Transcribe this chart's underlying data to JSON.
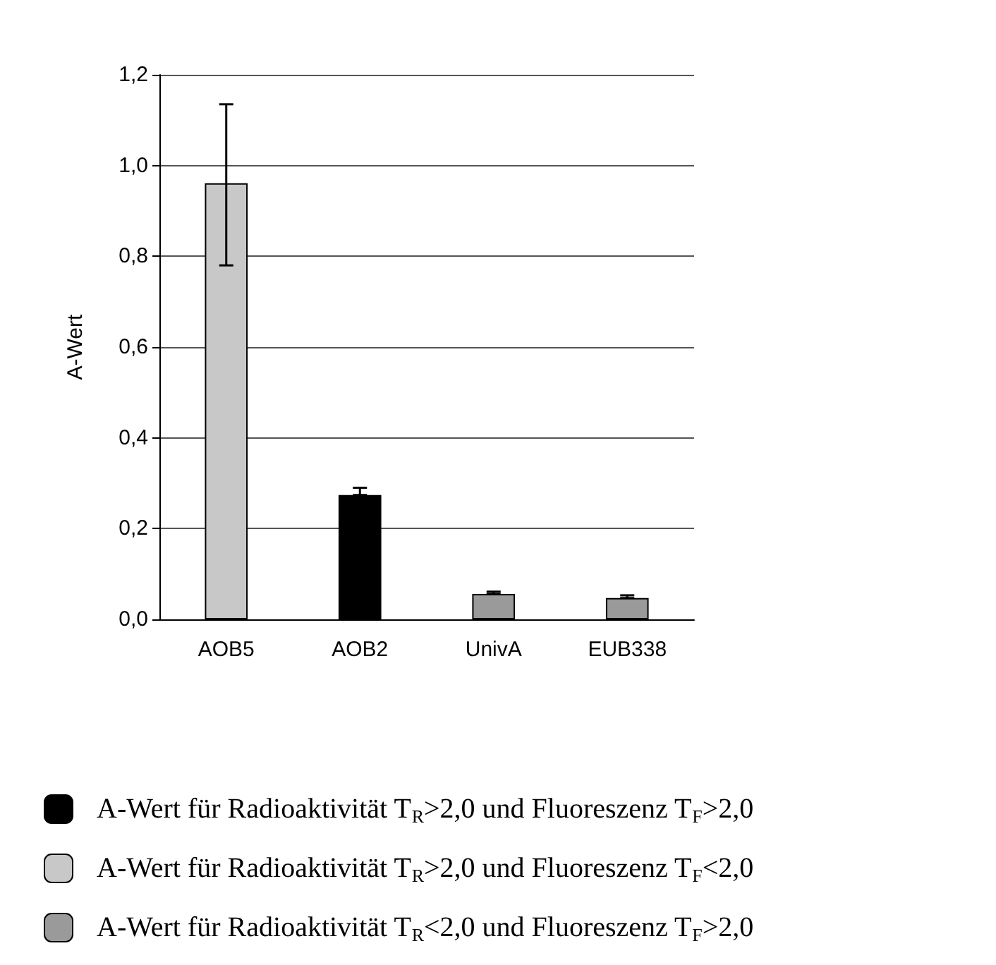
{
  "chart_data": {
    "type": "bar",
    "ylabel": "A-Wert",
    "categories": [
      "AOB5",
      "AOB2",
      "UnivA",
      "EUB338"
    ],
    "stacked": true,
    "series": [
      {
        "name": "A-Wert für Radioaktivität T$_{R}$>2,0 und Fluoreszenz T$_{F}$>2,0",
        "color": "#000000",
        "values": [
          null,
          0.274,
          null,
          null
        ],
        "errors": [
          null,
          [
            0.274,
            0.29
          ],
          null,
          null
        ]
      },
      {
        "name": "A-Wert für Radioaktivität T$_{R}$>2,0 und Fluoreszenz T$_{F}$<2,0",
        "color": "#c8c8c8",
        "values": [
          0.961,
          null,
          null,
          null
        ],
        "errors": [
          [
            0.78,
            1.135
          ],
          null,
          null,
          null
        ]
      },
      {
        "name": "A-Wert für Radioaktivität T$_{R}$<2,0 und Fluoreszenz T$_{F}$>2,0",
        "color": "#9a9a9a",
        "values": [
          null,
          null,
          0.056,
          0.047
        ],
        "errors": [
          null,
          null,
          [
            0.056,
            0.061
          ],
          [
            0.047,
            0.053
          ]
        ]
      }
    ],
    "ylim": [
      0,
      1.2
    ],
    "yticks": [
      {
        "value": 0,
        "label": "0,0"
      },
      {
        "value": 0.2,
        "label": "0,2"
      },
      {
        "value": 0.4,
        "label": "0,4"
      },
      {
        "value": 0.6,
        "label": "0,6"
      },
      {
        "value": 0.8,
        "label": "0,8"
      },
      {
        "value": 1,
        "label": "1,0"
      },
      {
        "value": 1.2,
        "label": "1,2"
      }
    ],
    "grid": "y",
    "legend": "bottom"
  }
}
